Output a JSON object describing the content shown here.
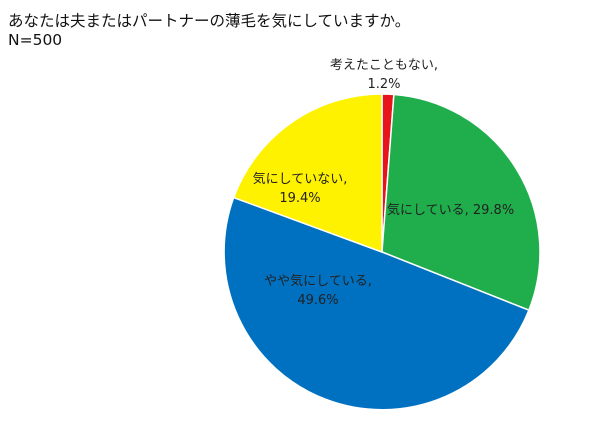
{
  "chart_data": {
    "type": "pie",
    "title": "あなたは夫またはパートナーの薄毛を気にしていますか。",
    "subtitle": "N=500",
    "slices": [
      {
        "label": "考えたこともない",
        "value": 1.2,
        "display": "1.2%",
        "color": "#e8141b"
      },
      {
        "label": "気にしている",
        "value": 29.8,
        "display": "29.8%",
        "color": "#1fae4b"
      },
      {
        "label": "やや気にしている",
        "value": 49.6,
        "display": "49.6%",
        "color": "#0070c0"
      },
      {
        "label": "気にしていない",
        "value": 19.4,
        "display": "19.4%",
        "color": "#fff200"
      }
    ],
    "start_angle_deg": -90,
    "direction": "clockwise",
    "legend": "none"
  }
}
